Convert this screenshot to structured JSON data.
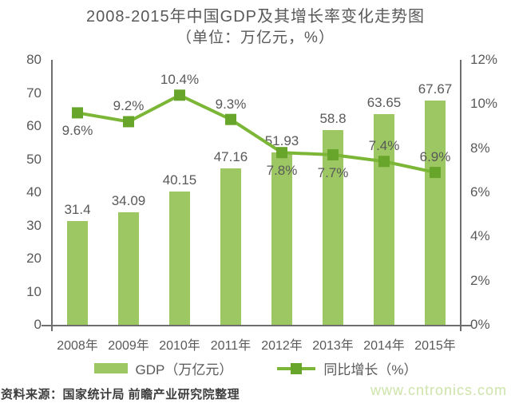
{
  "page": {
    "title": "2008-2015年中国GDP及其增长率变化走势图",
    "subtitle": "（单位：万亿元，%）",
    "source": "资料来源：国家统计局 前瞻产业研究院整理",
    "watermark": "www.cntronics.com"
  },
  "legend": {
    "items": [
      {
        "label": "GDP（万亿元）",
        "type": "bar"
      },
      {
        "label": "同比增长（%）",
        "type": "line"
      }
    ]
  },
  "colors": {
    "bar": "#9dc762",
    "line": "#7cb637",
    "marker": "#68a52b",
    "axis": "#6e6e6e",
    "text": "#595959",
    "source": "#3d3d3d",
    "watermark": "#cde4aa"
  },
  "chart_data": {
    "type": "bar",
    "title": "2008-2015年中国GDP及其增长率变化走势图",
    "subtitle": "（单位：万亿元，%）",
    "categories": [
      "2008年",
      "2009年",
      "2010年",
      "2011年",
      "2012年",
      "2013年",
      "2014年",
      "2015年"
    ],
    "series": [
      {
        "name": "GDP（万亿元）",
        "type": "bar",
        "axis": "left",
        "values": [
          31.4,
          34.09,
          40.15,
          47.16,
          51.93,
          58.8,
          63.65,
          67.67
        ],
        "labels": [
          "31.4",
          "34.09",
          "40.15",
          "47.16",
          "51.93",
          "58.8",
          "63.65",
          "67.67"
        ]
      },
      {
        "name": "同比增长（%）",
        "type": "line",
        "axis": "right",
        "values": [
          9.6,
          9.2,
          10.4,
          9.3,
          7.8,
          7.7,
          7.4,
          6.9
        ],
        "labels": [
          "9.6%",
          "9.2%",
          "10.4%",
          "9.3%",
          "7.8%",
          "7.7%",
          "7.4%",
          "6.9%"
        ],
        "label_positions": [
          "below",
          "above",
          "above",
          "above",
          "below",
          "below",
          "above",
          "above"
        ]
      }
    ],
    "left_axis": {
      "min": 0,
      "max": 80,
      "ticks": [
        "0",
        "10",
        "20",
        "30",
        "40",
        "50",
        "60",
        "70",
        "80"
      ]
    },
    "right_axis": {
      "min": 0,
      "max": 12,
      "ticks": [
        "0%",
        "2%",
        "4%",
        "6%",
        "8%",
        "10%",
        "12%"
      ]
    },
    "grid": false,
    "legend_position": "bottom"
  }
}
